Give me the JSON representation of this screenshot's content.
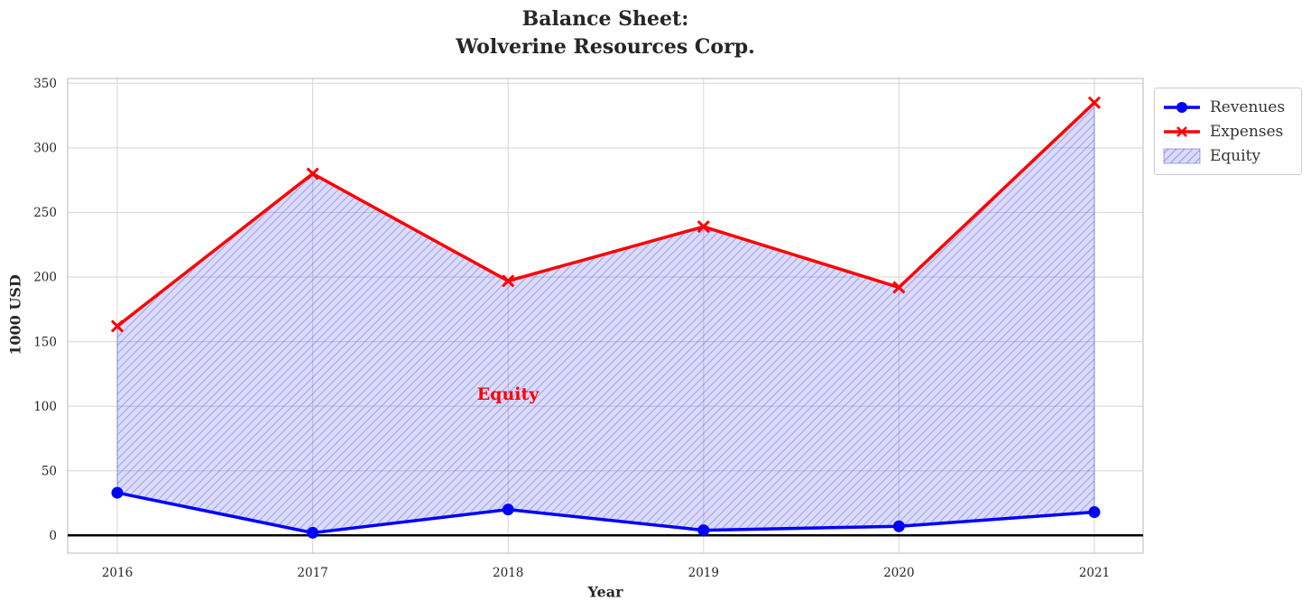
{
  "title": {
    "line1": "Balance Sheet:",
    "line2": "Wolverine Resources Corp."
  },
  "chart_data": {
    "type": "line",
    "x": [
      "2016",
      "2017",
      "2018",
      "2019",
      "2020",
      "2021"
    ],
    "series": [
      {
        "name": "Revenues",
        "color": "#0000ff",
        "marker": "circle",
        "values": [
          33,
          2,
          20,
          4,
          7,
          18
        ]
      },
      {
        "name": "Expenses",
        "color": "#ff0000",
        "marker": "x",
        "values": [
          162,
          280,
          197,
          239,
          192,
          335
        ]
      }
    ],
    "area": {
      "name": "Equity",
      "between": [
        "Revenues",
        "Expenses"
      ],
      "fill": "rgba(34,34,221,0.16)",
      "hatch_color": "rgba(70,70,215,0.38)",
      "edge_color": "rgba(90,90,220,0.55)"
    },
    "annotation": {
      "text": "Equity",
      "x": "2018",
      "y": 110,
      "color": "#ff0000"
    },
    "xlabel": "Year",
    "ylabel": "1000 USD",
    "yticks": [
      0,
      50,
      100,
      150,
      200,
      250,
      300,
      350
    ],
    "ylim": [
      -14,
      354
    ],
    "grid": true,
    "zero_line": true,
    "legend": [
      "Revenues",
      "Expenses",
      "Equity"
    ],
    "legend_position": "outside-top-right",
    "tick_color": "#262626",
    "grid_color": "#dcdcdc",
    "spine_color": "#c8c8c8"
  }
}
